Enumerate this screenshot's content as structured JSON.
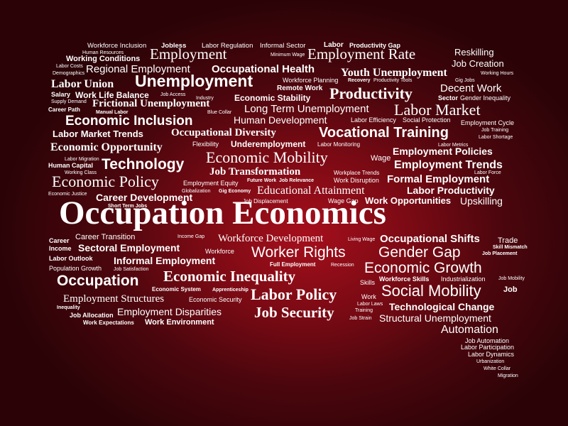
{
  "theme": {
    "accent": "#a50f1c",
    "background_dark": "#2b0307",
    "text": "#ffffff"
  },
  "words": [
    "Workforce Inclusion",
    "Jobless",
    "Labor Regulation",
    "Informal Sector",
    "Labor",
    "Productivity Gap",
    "Human Resources",
    "Employment",
    "Minimum Wage",
    "Employment Rate",
    "Reskilling",
    "Working Conditions",
    "Job Creation",
    "Labor Costs",
    "Regional Employment",
    "Occupational Health",
    "Demographics",
    "Youth Unemployment",
    "Working Hours",
    "Labor Union",
    "Unemployment",
    "Workforce Planning",
    "Recovery",
    "Productivity Tools",
    "Gig Jobs",
    "Remote Work",
    "Decent Work",
    "Salary",
    "Work Life Balance",
    "Job Access",
    "Economic Stability",
    "Productivity",
    "Sector",
    "Gender Inequality",
    "Supply Demand",
    "Industry",
    "Frictional Unemployment",
    "Career Path",
    "Long Term Unemployment",
    "Labor Market",
    "Manual Labor",
    "Blue Collar",
    "Economic Inclusion",
    "Human Development",
    "Labor Efficiency",
    "Social Protection",
    "Employment Cycle",
    "Labor Market Trends",
    "Occupational Diversity",
    "Vocational Training",
    "Job Training",
    "Labor Shortage",
    "Flexibility",
    "Underemployment",
    "Labor Monitoring",
    "Economic Opportunity",
    "Labor Metrics",
    "Employment Policies",
    "Labor Migration",
    "Economic Mobility",
    "Wage",
    "Human Capital",
    "Technology",
    "Employment Trends",
    "Working Class",
    "Job Transformation",
    "Workplace Trends",
    "Labor Force",
    "Economic Policy",
    "Future Work",
    "Job Relevance",
    "Work Disruption",
    "Formal Employment",
    "Employment Equity",
    "Economic Justice",
    "Gig Economy",
    "Educational Attainment",
    "Labor Productivity",
    "Globalization",
    "Career Development",
    "Job Displacement",
    "Wage Gap",
    "Work Opportunities",
    "Upskilling",
    "Short Term Jobs",
    "Occupation Economics",
    "Career",
    "Career Transition",
    "Income Gap",
    "Workforce Development",
    "Living Wage",
    "Occupational Shifts",
    "Trade",
    "Income",
    "Sectoral Employment",
    "Skill Mismatch",
    "Worker Rights",
    "Gender Gap",
    "Workforce",
    "Job Placement",
    "Labor Outlook",
    "Informal Employment",
    "Full Employment",
    "Recession",
    "Population Growth",
    "Job Satisfaction",
    "Economic Growth",
    "Occupation",
    "Economic Inequality",
    "Skills",
    "Workforce Skills",
    "Industrialization",
    "Job Mobility",
    "Economic System",
    "Apprenticeship",
    "Social Mobility",
    "Job",
    "Employment Structures",
    "Labor Policy",
    "Economic Security",
    "Work",
    "Inequality",
    "Labor Laws",
    "Technological Change",
    "Job Allocation",
    "Employment Disparities",
    "Training",
    "Job Security",
    "Structural Unemployment",
    "Job Strain",
    "Work Expectations",
    "Work Environment",
    "Automation",
    "Job Automation",
    "Labor Participation",
    "Labor Dynamics",
    "Urbanization",
    "White Collar",
    "Migration"
  ]
}
